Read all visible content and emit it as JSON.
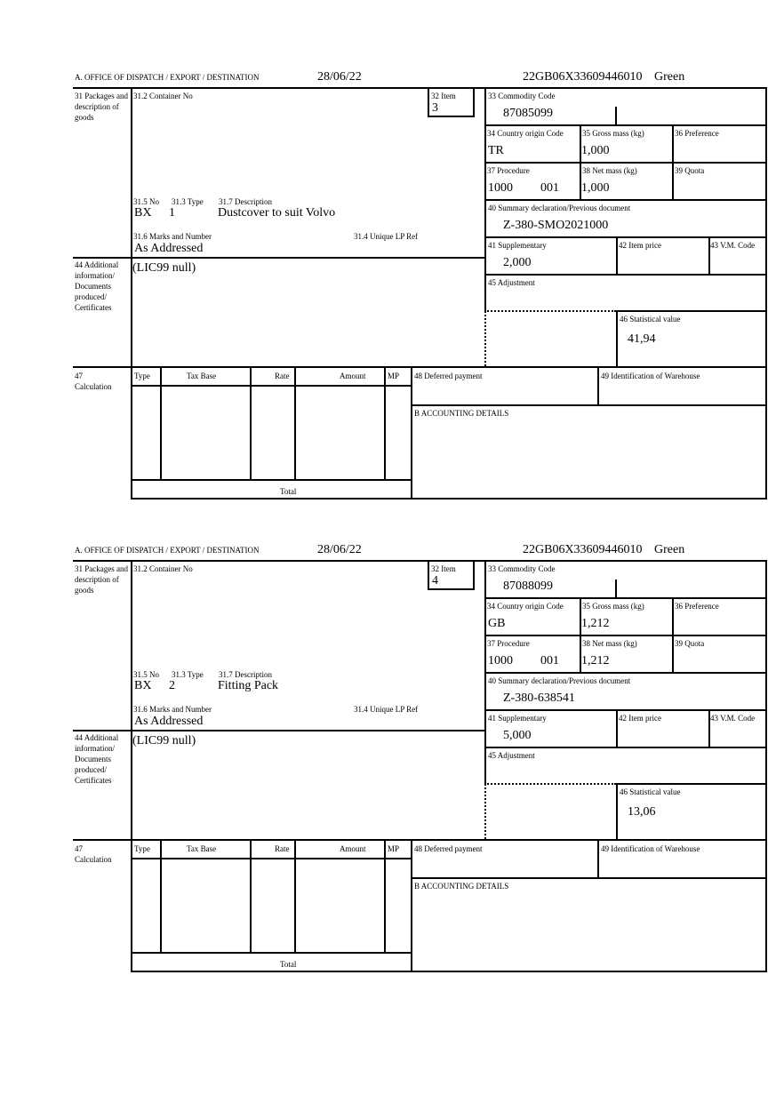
{
  "labels": {
    "office": "A. OFFICE OF DISPATCH / EXPORT / DESTINATION",
    "packages": "31 Packages and description of goods",
    "container": "31.2 Container No",
    "item": "32 Item",
    "no": "31.5 No",
    "type": "31.3 Type",
    "description": "31.7 Description",
    "marks": "31.6 Marks and Number",
    "unique_ref": "31.4 Unique LP Ref",
    "commodity": "33 Commodity Code",
    "origin": "34 Country origin Code",
    "gross": "35 Gross mass (kg)",
    "preference": "36 Preference",
    "procedure": "37 Procedure",
    "net": "38 Net mass (kg)",
    "quota": "39 Quota",
    "summary": "40 Summary declaration/Previous document",
    "supplementary": "41 Supplementary",
    "item_price": "42 Item price",
    "vm_code": "43 V.M. Code",
    "adjustment": "45 Adjustment",
    "statistical": "46 Statistical value",
    "additional": "44 Additional information/ Documents produced/ Certificates",
    "calculation": "47 Calculation",
    "calc_type": "Type",
    "calc_tax_base": "Tax Base",
    "calc_rate": "Rate",
    "calc_amount": "Amount",
    "calc_mp": "MP",
    "total": "Total",
    "deferred": "48 Deferred payment",
    "warehouse": "49 Identification of Warehouse",
    "accounting": "B ACCOUNTING DETAILS"
  },
  "blocks": [
    {
      "date": "28/06/22",
      "reference": "22GB06X33609446010",
      "route": "Green",
      "item": "3",
      "package_kind": "BX",
      "package_count": "1",
      "description": "Dustcover to suit Volvo",
      "marks": "As Addressed",
      "additional_info": "(LIC99 null)",
      "commodity_code": "87085099",
      "origin": "TR",
      "gross_mass": "1,000",
      "procedure": "1000",
      "procedure_add": "001",
      "net_mass": "1,000",
      "previous_document": "Z-380-SMO2021000",
      "supplementary": "2,000",
      "statistical_value": "41,94"
    },
    {
      "date": "28/06/22",
      "reference": "22GB06X33609446010",
      "route": "Green",
      "item": "4",
      "package_kind": "BX",
      "package_count": "2",
      "description": "Fitting Pack",
      "marks": "As Addressed",
      "additional_info": "(LIC99 null)",
      "commodity_code": "87088099",
      "origin": "GB",
      "gross_mass": "1,212",
      "procedure": "1000",
      "procedure_add": "001",
      "net_mass": "1,212",
      "previous_document": "Z-380-638541",
      "supplementary": "5,000",
      "statistical_value": "13,06"
    }
  ]
}
